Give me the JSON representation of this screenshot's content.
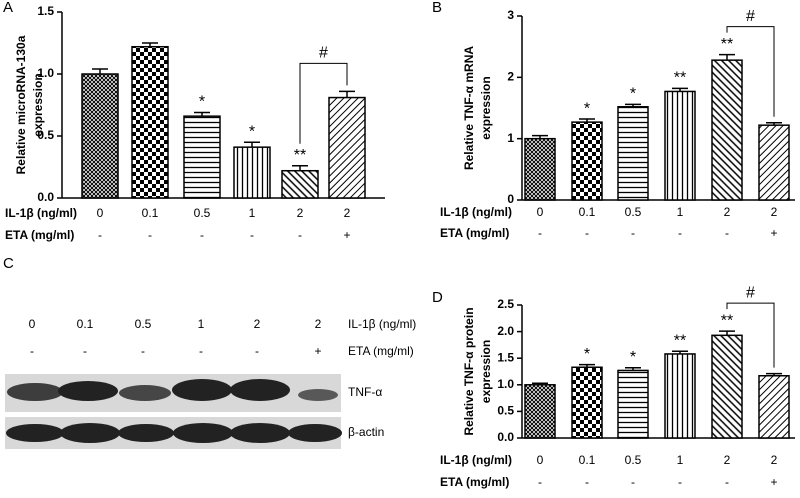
{
  "chart_data": [
    {
      "type": "bar",
      "panel": "A",
      "ylabel": [
        "Relative microRNA-130a",
        "expression"
      ],
      "row_labels": [
        "IL-1β (ng/ml)",
        "ETA (mg/ml)"
      ],
      "categories": [
        "0",
        "0.1",
        "0.5",
        "1",
        "2",
        "2"
      ],
      "eta": [
        "-",
        "-",
        "-",
        "-",
        "-",
        "+"
      ],
      "values": [
        1.0,
        1.22,
        0.66,
        0.41,
        0.22,
        0.81
      ],
      "errors": [
        0.04,
        0.03,
        0.03,
        0.04,
        0.04,
        0.05
      ],
      "annotations": [
        null,
        null,
        "*",
        "*",
        "**",
        null
      ],
      "bracket_label": "#",
      "ylim": [
        0,
        1.5
      ],
      "yticks": [
        {
          "value": 0,
          "label": "0.0"
        },
        0.5,
        {
          "value": 1,
          "label": "1.0"
        },
        1.5
      ]
    },
    {
      "type": "bar",
      "panel": "B",
      "ylabel": [
        "Relative TNF-α mRNA",
        "expression"
      ],
      "row_labels": [
        "IL-1β (ng/ml)",
        "ETA (mg/ml)"
      ],
      "categories": [
        "0",
        "0.1",
        "0.5",
        "1",
        "2",
        "2"
      ],
      "eta": [
        "-",
        "-",
        "-",
        "-",
        "-",
        "+"
      ],
      "values": [
        1.0,
        1.27,
        1.52,
        1.77,
        2.28,
        1.22
      ],
      "errors": [
        0.05,
        0.05,
        0.04,
        0.05,
        0.09,
        0.04
      ],
      "annotations": [
        null,
        "*",
        "*",
        "**",
        "**",
        null
      ],
      "bracket_label": "#",
      "ylim": [
        0,
        3
      ],
      "yticks": [
        0,
        1,
        2,
        3
      ]
    },
    {
      "type": "bar",
      "panel": "D",
      "ylabel": [
        "Relative TNF-α protein",
        "expression"
      ],
      "row_labels": [
        "IL-1β (ng/ml)",
        "ETA (mg/ml)"
      ],
      "categories": [
        "0",
        "0.1",
        "0.5",
        "1",
        "2",
        "2"
      ],
      "eta": [
        "-",
        "-",
        "-",
        "-",
        "-",
        "+"
      ],
      "values": [
        1.0,
        1.33,
        1.27,
        1.58,
        1.93,
        1.17
      ],
      "errors": [
        0.03,
        0.05,
        0.05,
        0.05,
        0.08,
        0.04
      ],
      "annotations": [
        null,
        "*",
        "*",
        "**",
        "**",
        null
      ],
      "bracket_label": "#",
      "ylim": [
        0,
        2.5
      ],
      "yticks": [
        {
          "value": 0,
          "label": "0.0"
        },
        0.5,
        {
          "value": 1,
          "label": "1.0"
        },
        1.5,
        {
          "value": 2,
          "label": "2.0"
        },
        2.5
      ]
    }
  ],
  "blot": {
    "panel": "C",
    "doses": [
      "0",
      "0.1",
      "0.5",
      "1",
      "2",
      "2"
    ],
    "eta": [
      "-",
      "-",
      "-",
      "-",
      "-",
      "+"
    ],
    "row_labels": [
      "IL-1β (ng/ml)",
      "ETA (mg/ml)"
    ],
    "bands": [
      "TNF-α",
      "β-actin"
    ]
  }
}
